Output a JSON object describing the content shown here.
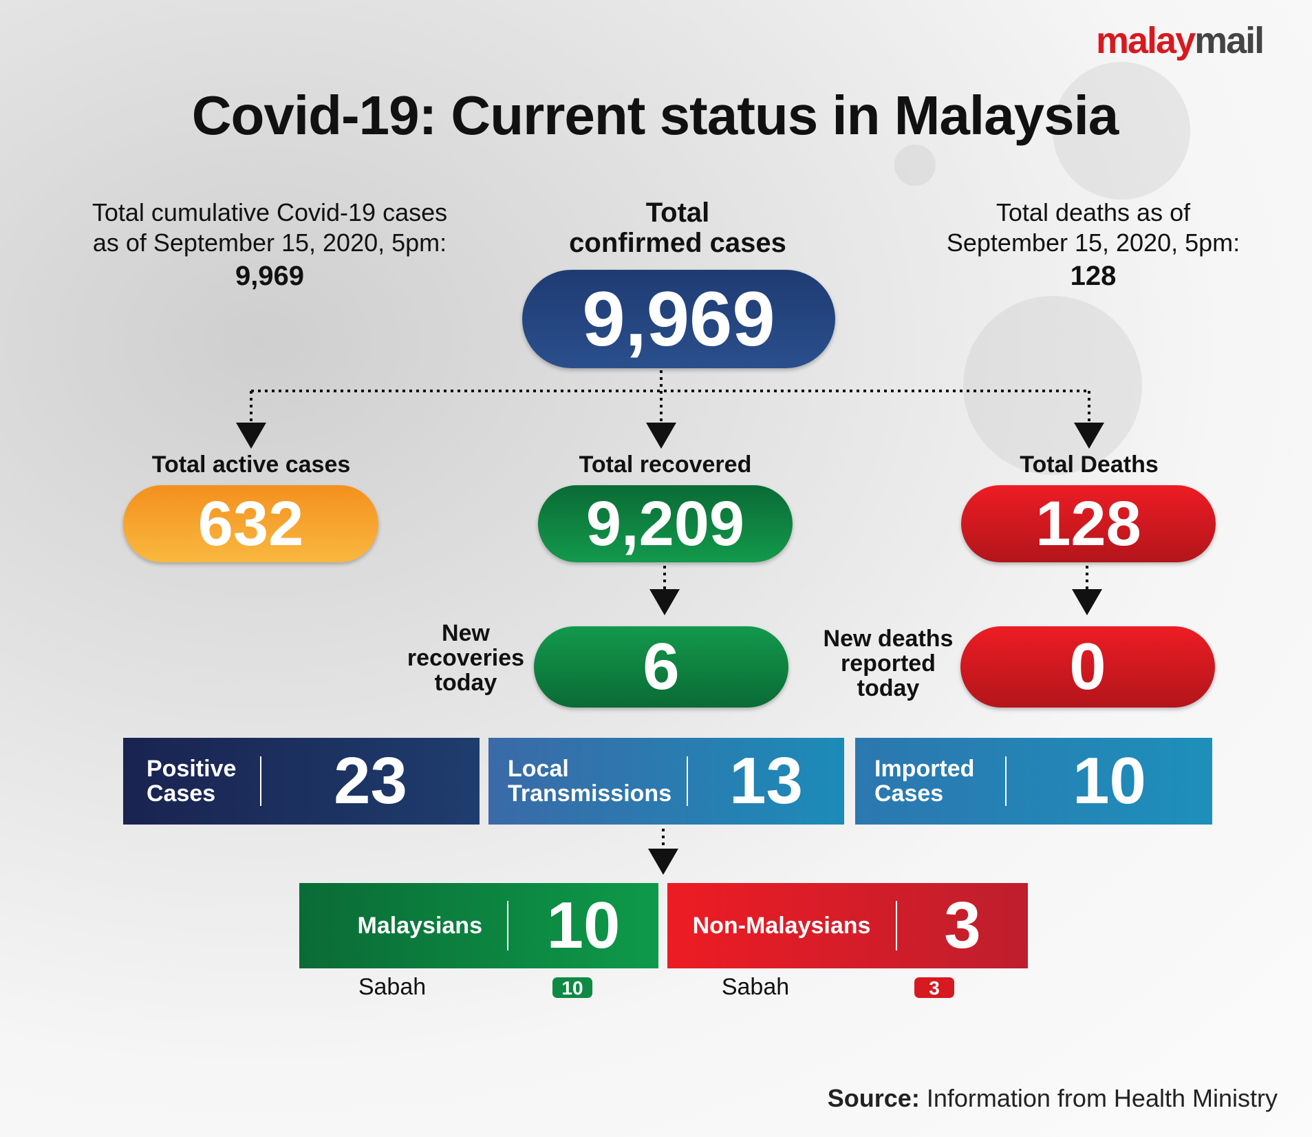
{
  "logo": {
    "part1": "malay",
    "part2": "mail"
  },
  "title": "Covid-19: Current status in Malaysia",
  "left_note": {
    "lines": [
      "Total cumulative Covid-19 cases",
      "as of September 15, 2020, 5pm:"
    ],
    "value": "9,969"
  },
  "right_note": {
    "lines": [
      "Total deaths as of",
      "September 15, 2020, 5pm:"
    ],
    "value": "128"
  },
  "confirmed": {
    "lines": [
      "Total",
      "confirmed cases"
    ],
    "value": "9,969"
  },
  "active": {
    "label": "Total active cases",
    "value": "632"
  },
  "recovered": {
    "label": "Total recovered",
    "value": "9,209"
  },
  "deaths": {
    "label": "Total Deaths",
    "value": "128"
  },
  "new_recoveries": {
    "lines": [
      "New",
      "recoveries",
      "today"
    ],
    "value": "6"
  },
  "new_deaths": {
    "lines": [
      "New deaths",
      "reported",
      "today"
    ],
    "value": "0"
  },
  "cases": [
    {
      "lines": [
        "Positive",
        "Cases"
      ],
      "value": "23"
    },
    {
      "lines": [
        "Local",
        "Transmissions"
      ],
      "value": "13"
    },
    {
      "lines": [
        "Imported",
        "Cases"
      ],
      "value": "10"
    }
  ],
  "local": [
    {
      "label": "Malaysians",
      "value": "10",
      "region": "Sabah",
      "region_value": "10"
    },
    {
      "label": "Non-Malaysians",
      "value": "3",
      "region": "Sabah",
      "region_value": "3"
    }
  ],
  "source": {
    "label": "Source:",
    "text": "Information from Health Ministry"
  }
}
